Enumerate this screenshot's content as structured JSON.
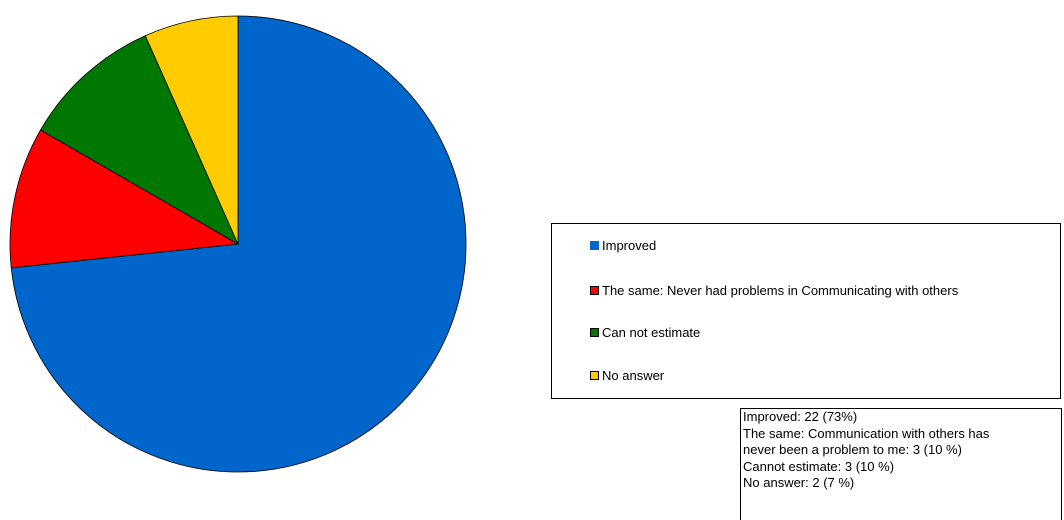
{
  "chart_data": {
    "type": "pie",
    "series": [
      {
        "name": "Improved",
        "value": 22,
        "color": "#0066cc"
      },
      {
        "name": "The same: Never had problems in Communicating with others",
        "value": 3,
        "color": "#ff0000"
      },
      {
        "name": "Can not estimate",
        "value": 3,
        "color": "#007700"
      },
      {
        "name": "No answer",
        "value": 2,
        "color": "#ffcc00"
      }
    ],
    "start_angle_deg": 0,
    "direction": "clockwise",
    "legend_placement": "right"
  },
  "legend": {
    "items": [
      "Improved",
      "The same: Never had problems in Communicating with others",
      "Can not estimate",
      "No answer"
    ]
  },
  "notes": {
    "lines": [
      "Improved: 22 (73%)",
      "The same: Communication with others has",
      "never been a problem to me: 3 (10 %)",
      "Cannot estimate: 3 (10 %)",
      "No answer: 2  (7 %)"
    ]
  }
}
